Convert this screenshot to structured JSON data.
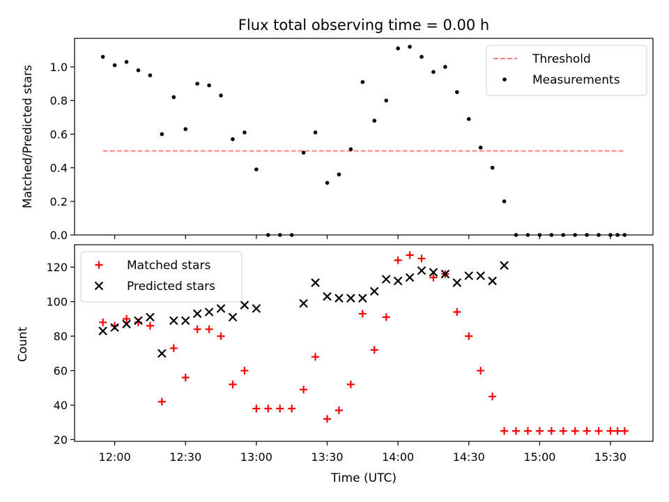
{
  "title": "Flux total observing time = 0.00 h",
  "xlabel": "Time (UTC)",
  "xtick_labels": [
    "12:00",
    "12:30",
    "13:00",
    "13:30",
    "14:00",
    "14:30",
    "15:00",
    "15:30"
  ],
  "chart_data": [
    {
      "type": "scatter",
      "ylabel": "Matched/Predicted stars",
      "xlim": [
        "11:43",
        "15:48"
      ],
      "ylim": [
        0,
        1.17
      ],
      "yticks": [
        0.0,
        0.2,
        0.4,
        0.6,
        0.8,
        1.0
      ],
      "ytick_labels": [
        "0.0",
        "0.2",
        "0.4",
        "0.6",
        "0.8",
        "1.0"
      ],
      "grid": false,
      "legend_placement": "upper right",
      "threshold": {
        "name": "Threshold",
        "value": 0.5,
        "x_start": "11:55",
        "x_end": "15:36",
        "color": "#ff7f7f",
        "style": "dashed"
      },
      "series": [
        {
          "name": "Measurements",
          "marker": "dot",
          "color": "#000000",
          "x": [
            "11:55",
            "12:00",
            "12:05",
            "12:10",
            "12:15",
            "12:20",
            "12:25",
            "12:30",
            "12:35",
            "12:40",
            "12:45",
            "12:50",
            "12:55",
            "13:00",
            "13:05",
            "13:10",
            "13:15",
            "13:20",
            "13:25",
            "13:30",
            "13:35",
            "13:40",
            "13:45",
            "13:50",
            "13:55",
            "14:00",
            "14:05",
            "14:10",
            "14:15",
            "14:20",
            "14:25",
            "14:30",
            "14:35",
            "14:40",
            "14:45",
            "14:50",
            "14:55",
            "15:00",
            "15:05",
            "15:10",
            "15:15",
            "15:20",
            "15:25",
            "15:30",
            "15:33",
            "15:36"
          ],
          "y": [
            1.06,
            1.01,
            1.03,
            0.98,
            0.95,
            0.6,
            0.82,
            0.63,
            0.9,
            0.89,
            0.83,
            0.57,
            0.61,
            0.39,
            0.0,
            0.0,
            0.0,
            0.49,
            0.61,
            0.31,
            0.36,
            0.51,
            0.91,
            0.68,
            0.8,
            1.11,
            1.12,
            1.06,
            0.97,
            1.0,
            0.85,
            0.69,
            0.52,
            0.4,
            0.2,
            0.0,
            0.0,
            0.0,
            0.0,
            0.0,
            0.0,
            0.0,
            0.0,
            0.0,
            0.0,
            0.0
          ]
        }
      ]
    },
    {
      "type": "scatter",
      "ylabel": "Count",
      "xlim": [
        "11:43",
        "15:48"
      ],
      "ylim": [
        19,
        133
      ],
      "yticks": [
        20,
        40,
        60,
        80,
        100,
        120
      ],
      "ytick_labels": [
        "20",
        "40",
        "60",
        "80",
        "100",
        "120"
      ],
      "grid": false,
      "legend_placement": "upper left",
      "series": [
        {
          "name": "Matched stars",
          "marker": "plus",
          "color": "#ff0000",
          "x": [
            "11:55",
            "12:00",
            "12:05",
            "12:10",
            "12:15",
            "12:20",
            "12:25",
            "12:30",
            "12:35",
            "12:40",
            "12:45",
            "12:50",
            "12:55",
            "13:00",
            "13:05",
            "13:10",
            "13:15",
            "13:20",
            "13:25",
            "13:30",
            "13:35",
            "13:40",
            "13:45",
            "13:50",
            "13:55",
            "14:00",
            "14:05",
            "14:10",
            "14:15",
            "14:20",
            "14:25",
            "14:30",
            "14:35",
            "14:40",
            "14:45",
            "14:50",
            "14:55",
            "15:00",
            "15:05",
            "15:10",
            "15:15",
            "15:20",
            "15:25",
            "15:30",
            "15:33",
            "15:36"
          ],
          "y": [
            88,
            86,
            90,
            88,
            86,
            42,
            73,
            56,
            84,
            84,
            80,
            52,
            60,
            38,
            38,
            38,
            38,
            49,
            68,
            32,
            37,
            52,
            93,
            72,
            91,
            124,
            127,
            125,
            114,
            116,
            94,
            80,
            60,
            45,
            25,
            25,
            25,
            25,
            25,
            25,
            25,
            25,
            25,
            25,
            25,
            25
          ]
        },
        {
          "name": "Predicted stars",
          "marker": "x",
          "color": "#000000",
          "x": [
            "11:55",
            "12:00",
            "12:05",
            "12:10",
            "12:15",
            "12:20",
            "12:25",
            "12:30",
            "12:35",
            "12:40",
            "12:45",
            "12:50",
            "12:55",
            "13:00",
            "13:20",
            "13:25",
            "13:30",
            "13:35",
            "13:40",
            "13:45",
            "13:50",
            "13:55",
            "14:00",
            "14:05",
            "14:10",
            "14:15",
            "14:20",
            "14:25",
            "14:30",
            "14:35",
            "14:40",
            "14:45"
          ],
          "y": [
            83,
            85,
            87,
            89,
            91,
            70,
            89,
            89,
            93,
            94,
            96,
            91,
            98,
            96,
            99,
            111,
            103,
            102,
            102,
            102,
            106,
            113,
            112,
            114,
            118,
            117,
            116,
            111,
            115,
            115,
            112,
            121
          ]
        }
      ]
    }
  ]
}
